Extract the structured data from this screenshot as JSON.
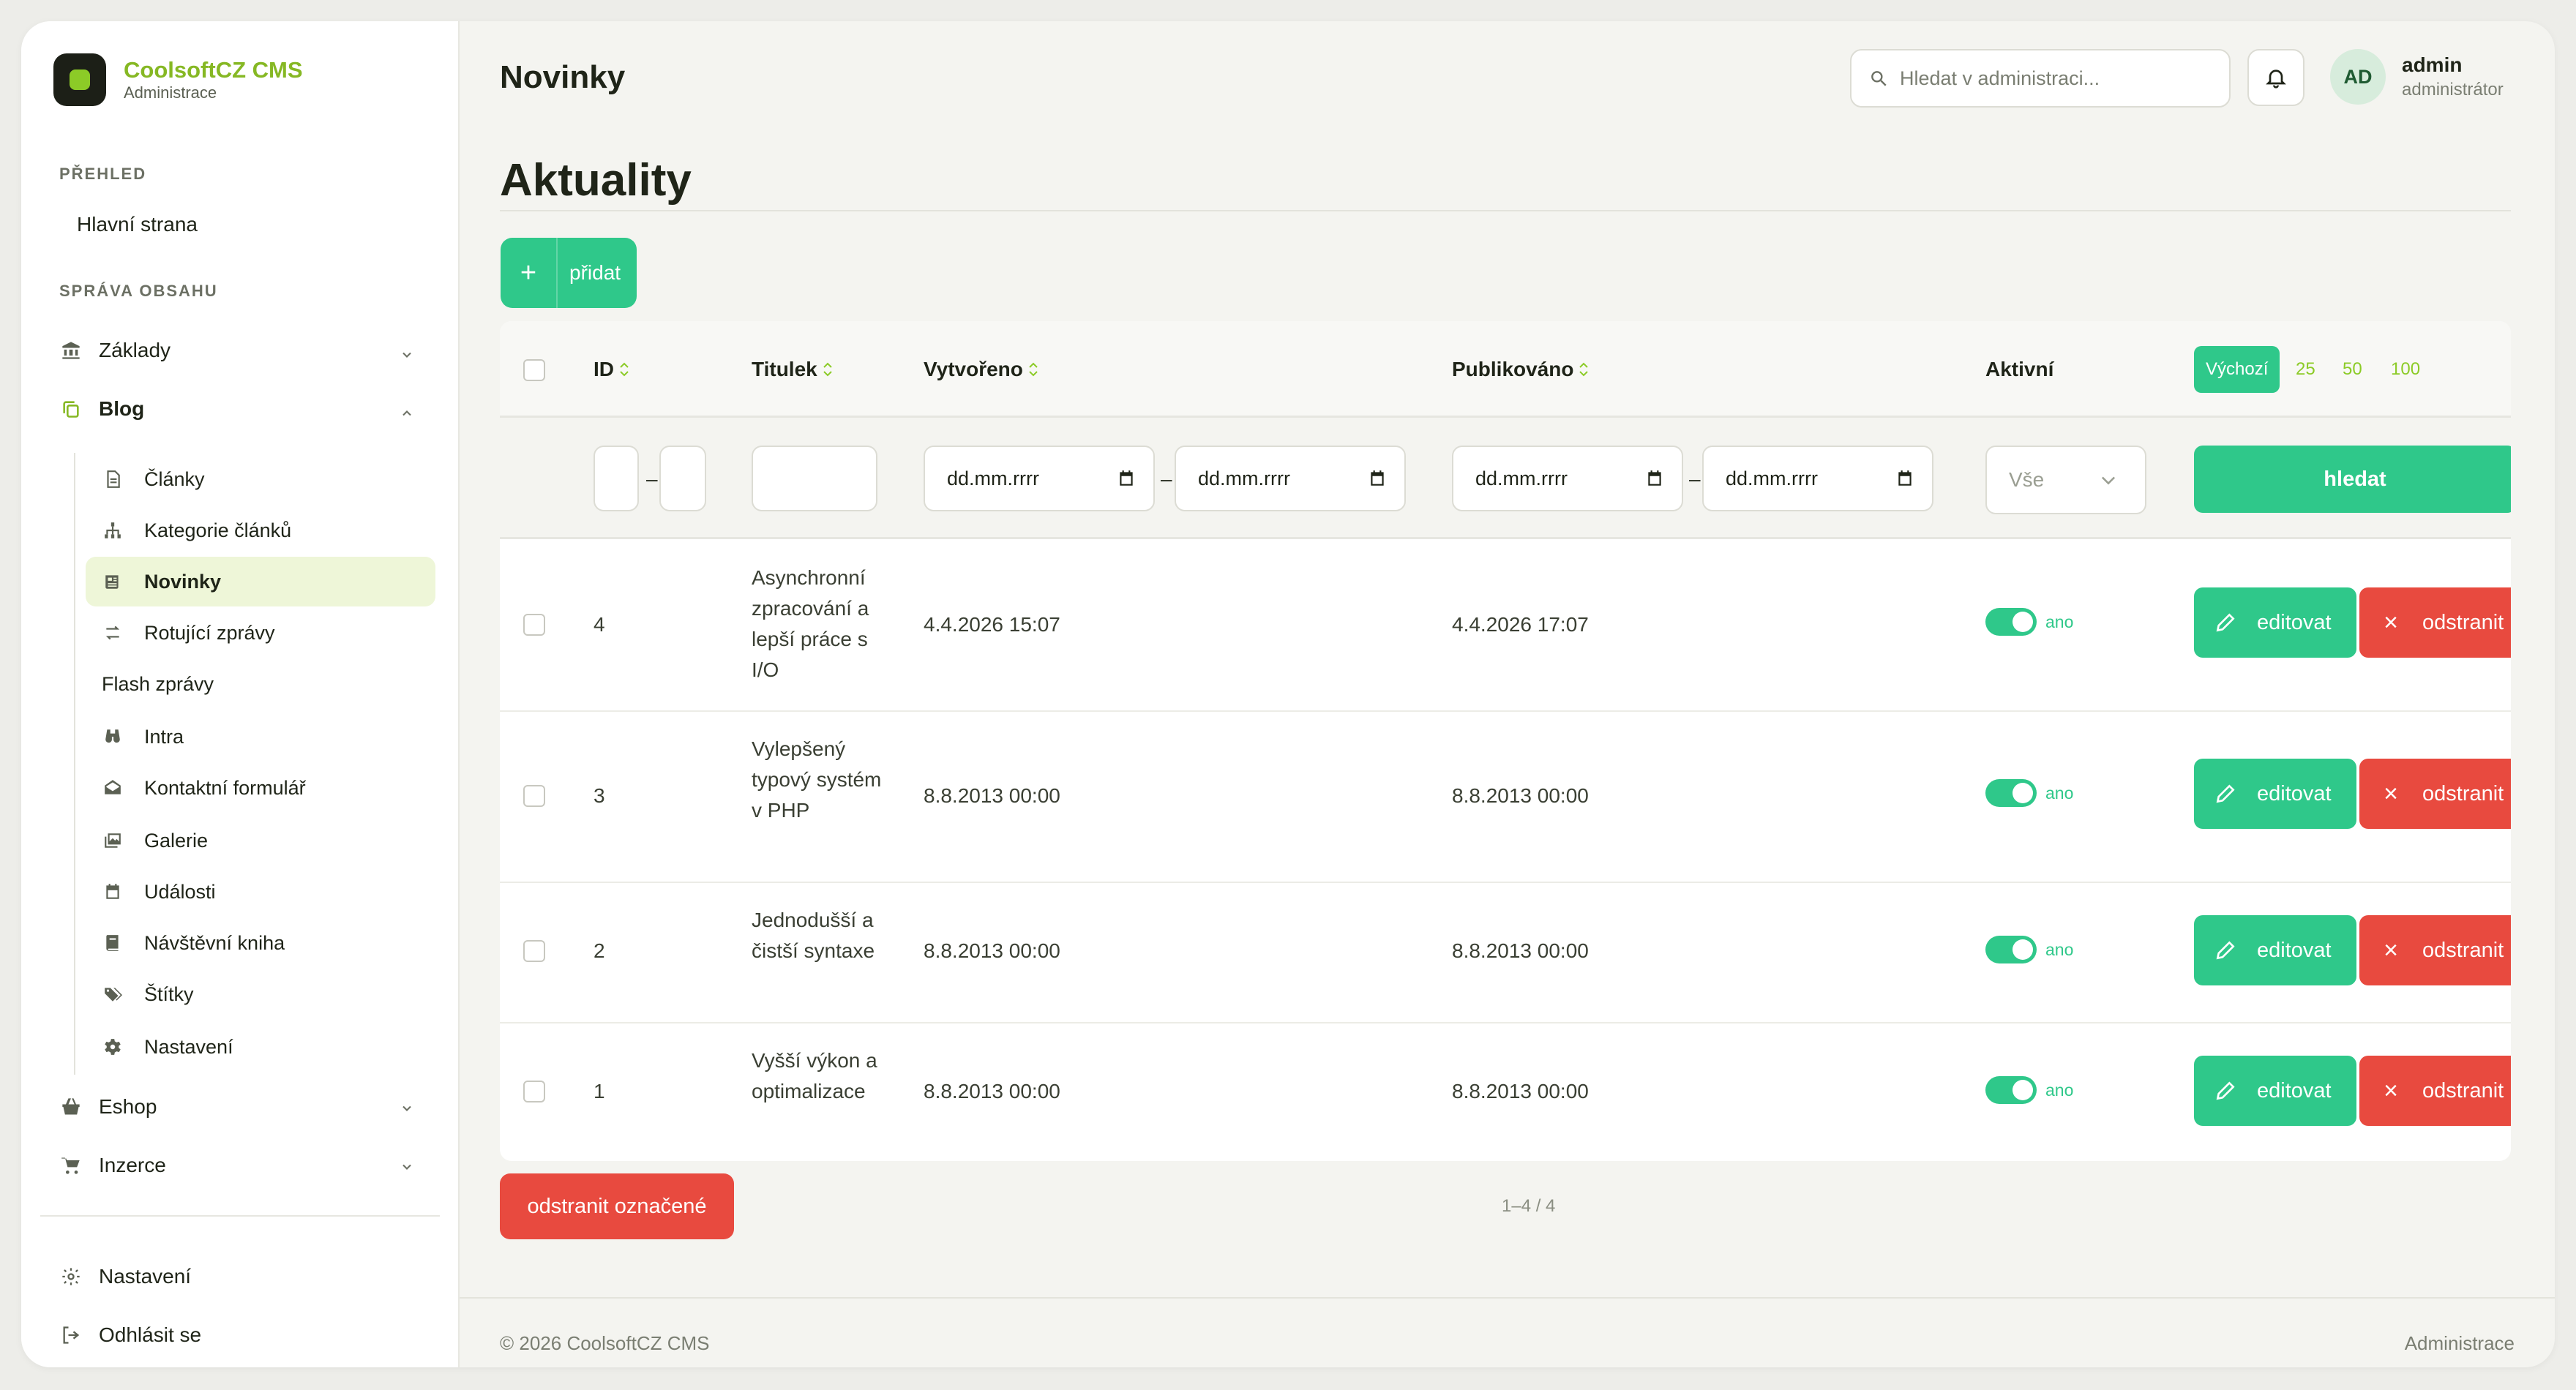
{
  "brand": {
    "title": "CoolsoftCZ CMS",
    "subtitle": "Administrace"
  },
  "sidebar": {
    "section_overview": "PŘEHLED",
    "home": "Hlavní strana",
    "section_content": "SPRÁVA OBSAHU",
    "zaklady": "Základy",
    "blog": "Blog",
    "blog_items": [
      {
        "label": "Články",
        "icon": "document-icon"
      },
      {
        "label": "Kategorie článků",
        "icon": "sitemap-icon"
      },
      {
        "label": "Novinky",
        "icon": "newspaper-icon"
      },
      {
        "label": "Rotující zprávy",
        "icon": "arrows-icon"
      },
      {
        "label": "Flash zprávy",
        "icon": ""
      },
      {
        "label": "Intra",
        "icon": "binoculars-icon"
      },
      {
        "label": "Kontaktní formulář",
        "icon": "envelope-icon"
      },
      {
        "label": "Galerie",
        "icon": "images-icon"
      },
      {
        "label": "Události",
        "icon": "calendar-icon"
      },
      {
        "label": "Návštěvní kniha",
        "icon": "book-icon"
      },
      {
        "label": "Štítky",
        "icon": "tags-icon"
      },
      {
        "label": "Nastavení",
        "icon": "gear-icon"
      }
    ],
    "eshop": "Eshop",
    "inzerce": "Inzerce",
    "settings": "Nastavení",
    "logout": "Odhlásit se"
  },
  "header": {
    "title": "Novinky",
    "search_placeholder": "Hledat v administraci...",
    "user_initials": "AD",
    "user_name": "admin",
    "user_role": "administrátor"
  },
  "content": {
    "section_title": "Aktuality",
    "add_label": "přidat"
  },
  "table": {
    "columns": {
      "id": "ID",
      "title": "Titulek",
      "created": "Vytvořeno",
      "published": "Publikováno",
      "active": "Aktivní"
    },
    "per_page": [
      "Výchozí",
      "25",
      "50",
      "100"
    ],
    "filters": {
      "date_placeholder": "dd.mm.rrrr",
      "active_select": "Vše",
      "search_button": "hledat"
    },
    "rows": [
      {
        "id": "4",
        "title": "Asynchronní zpracování a lepší práce s I/O",
        "created": "4.4.2026 15:07",
        "published": "4.4.2026 17:07",
        "active": "ano"
      },
      {
        "id": "3",
        "title": "Vylepšený typový systém v PHP",
        "created": "8.8.2013 00:00",
        "published": "8.8.2013 00:00",
        "active": "ano"
      },
      {
        "id": "2",
        "title": "Jednodušší a čistší syntaxe",
        "created": "8.8.2013 00:00",
        "published": "8.8.2013 00:00",
        "active": "ano"
      },
      {
        "id": "1",
        "title": "Vyšší výkon a optimalizace",
        "created": "8.8.2013 00:00",
        "published": "8.8.2013 00:00",
        "active": "ano"
      }
    ],
    "edit_label": "editovat",
    "delete_label": "odstranit",
    "delete_marked": "odstranit označené",
    "pager": "1–4 / 4"
  },
  "footer": {
    "copyright": "© 2026 CoolsoftCZ CMS",
    "right": "Administrace"
  },
  "colors": {
    "accent": "#2fc88a",
    "brand": "#86b824",
    "danger": "#e84a3f"
  }
}
